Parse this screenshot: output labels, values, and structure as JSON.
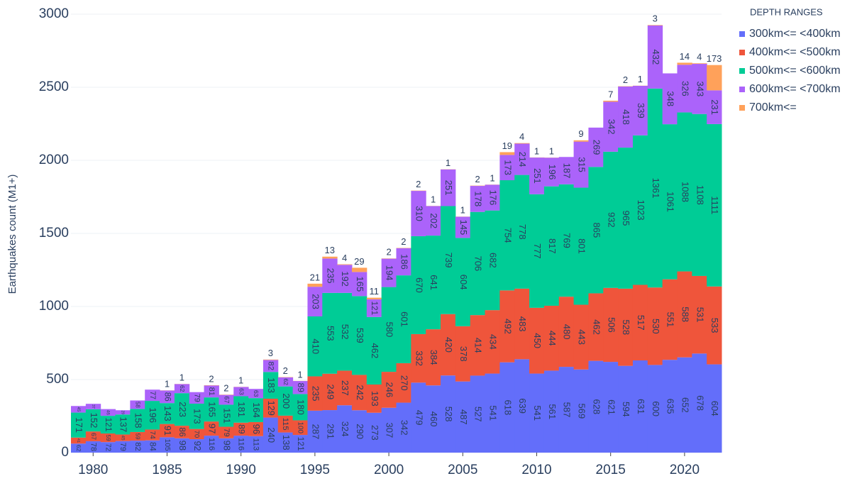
{
  "chart_data": {
    "type": "stacked-bar",
    "y_label": "Earthquakes count (M1+)",
    "legend_title": "DEPTH RANGES",
    "x": [
      1979,
      1980,
      1981,
      1982,
      1983,
      1984,
      1985,
      1986,
      1987,
      1988,
      1989,
      1990,
      1991,
      1992,
      1993,
      1994,
      1995,
      1996,
      1997,
      1998,
      1999,
      2000,
      2001,
      2002,
      2003,
      2004,
      2005,
      2006,
      2007,
      2008,
      2009,
      2010,
      2011,
      2012,
      2013,
      2014,
      2015,
      2016,
      2017,
      2018,
      2019,
      2020,
      2021,
      2022
    ],
    "xlim": [
      1978.5,
      2022.5
    ],
    "xticks": [
      1980,
      1985,
      1990,
      1995,
      2000,
      2005,
      2010,
      2015,
      2020
    ],
    "ylim": [
      0,
      3000
    ],
    "yticks": [
      0,
      500,
      1000,
      1500,
      2000,
      2500,
      3000
    ],
    "grid": true,
    "legend": "right",
    "series": [
      {
        "name": "300km<= <400km",
        "color": "#636efa",
        "values": [
          62,
          78,
          72,
          79,
          82,
          84,
          105,
          98,
          92,
          116,
          98,
          116,
          113,
          240,
          138,
          121,
          287,
          291,
          324,
          290,
          273,
          307,
          342,
          479,
          460,
          528,
          487,
          527,
          541,
          618,
          639,
          541,
          561,
          587,
          569,
          628,
          621,
          594,
          631,
          600,
          635,
          652,
          678,
          604
        ]
      },
      {
        "name": "400km<= <500km",
        "color": "#ef553b",
        "values": [
          41,
          67,
          59,
          45,
          59,
          74,
          91,
          86,
          70,
          97,
          79,
          89,
          96,
          129,
          115,
          100,
          235,
          249,
          237,
          242,
          193,
          246,
          270,
          332,
          384,
          420,
          378,
          414,
          434,
          492,
          483,
          450,
          444,
          480,
          443,
          462,
          506,
          528,
          517,
          530,
          551,
          588,
          531,
          533
        ]
      },
      {
        "name": "500km<= <600km",
        "color": "#00cc96",
        "values": [
          171,
          152,
          121,
          137,
          158,
          196,
          143,
          223,
          173,
          165,
          151,
          181,
          164,
          183,
          200,
          180,
          410,
          553,
          532,
          539,
          462,
          580,
          601,
          670,
          641,
          739,
          604,
          706,
          682,
          754,
          778,
          777,
          817,
          769,
          801,
          865,
          932,
          965,
          1023,
          1361,
          1061,
          1088,
          1108,
          1111
        ]
      },
      {
        "name": "600km<= <700km",
        "color": "#ab63fa",
        "values": [
          45,
          37,
          46,
          29,
          58,
          77,
          86,
          62,
          79,
          81,
          67,
          63,
          63,
          82,
          62,
          89,
          203,
          235,
          192,
          165,
          121,
          194,
          186,
          310,
          202,
          251,
          145,
          178,
          176,
          173,
          214,
          251,
          196,
          187,
          315,
          269,
          342,
          418,
          339,
          432,
          348,
          326,
          343,
          231
        ]
      },
      {
        "name": "700km<=",
        "color": "#ffa15a",
        "values": [
          null,
          null,
          null,
          null,
          null,
          null,
          1,
          1,
          null,
          2,
          2,
          1,
          null,
          3,
          2,
          1,
          21,
          13,
          4,
          29,
          11,
          2,
          2,
          2,
          1,
          1,
          1,
          2,
          1,
          19,
          4,
          1,
          1,
          null,
          9,
          null,
          7,
          2,
          1,
          3,
          null,
          14,
          4,
          173
        ]
      }
    ]
  }
}
